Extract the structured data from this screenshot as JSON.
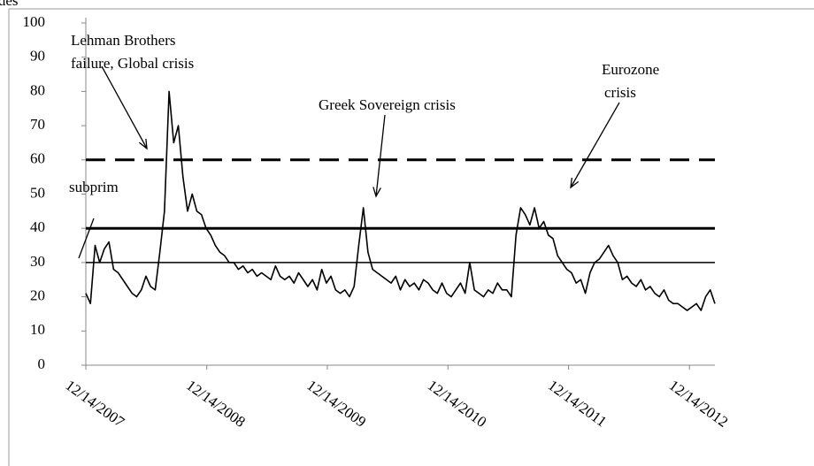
{
  "chart_data": {
    "type": "line",
    "title": "isodes",
    "color": "#000000",
    "x": [
      "2007-12-14",
      "2007-12-28",
      "2008-01-11",
      "2008-01-25",
      "2008-02-08",
      "2008-02-22",
      "2008-03-07",
      "2008-03-21",
      "2008-04-04",
      "2008-04-18",
      "2008-05-02",
      "2008-05-16",
      "2008-05-30",
      "2008-06-13",
      "2008-06-27",
      "2008-07-11",
      "2008-07-25",
      "2008-08-08",
      "2008-08-22",
      "2008-09-05",
      "2008-09-19",
      "2008-10-03",
      "2008-10-17",
      "2008-10-31",
      "2008-11-14",
      "2008-11-28",
      "2008-12-12",
      "2008-12-26",
      "2009-01-09",
      "2009-01-23",
      "2009-02-06",
      "2009-02-20",
      "2009-03-06",
      "2009-03-20",
      "2009-04-03",
      "2009-04-17",
      "2009-05-01",
      "2009-05-15",
      "2009-05-29",
      "2009-06-12",
      "2009-06-26",
      "2009-07-10",
      "2009-07-24",
      "2009-08-07",
      "2009-08-21",
      "2009-09-04",
      "2009-09-18",
      "2009-10-02",
      "2009-10-16",
      "2009-10-30",
      "2009-11-13",
      "2009-11-27",
      "2009-12-11",
      "2009-12-25",
      "2010-01-08",
      "2010-01-22",
      "2010-02-05",
      "2010-02-19",
      "2010-03-05",
      "2010-03-19",
      "2010-04-02",
      "2010-04-16",
      "2010-04-30",
      "2010-05-14",
      "2010-05-28",
      "2010-06-11",
      "2010-06-25",
      "2010-07-09",
      "2010-07-23",
      "2010-08-06",
      "2010-08-20",
      "2010-09-03",
      "2010-09-17",
      "2010-10-01",
      "2010-10-15",
      "2010-10-29",
      "2010-11-12",
      "2010-11-26",
      "2010-12-10",
      "2010-12-24",
      "2011-01-07",
      "2011-01-21",
      "2011-02-04",
      "2011-02-18",
      "2011-03-04",
      "2011-03-18",
      "2011-04-01",
      "2011-04-15",
      "2011-04-29",
      "2011-05-13",
      "2011-05-27",
      "2011-06-10",
      "2011-06-24",
      "2011-07-08",
      "2011-07-22",
      "2011-08-05",
      "2011-08-19",
      "2011-09-02",
      "2011-09-16",
      "2011-09-30",
      "2011-10-14",
      "2011-10-28",
      "2011-11-11",
      "2011-11-25",
      "2011-12-09",
      "2011-12-23",
      "2012-01-06",
      "2012-01-20",
      "2012-02-03",
      "2012-02-17",
      "2012-03-02",
      "2012-03-16",
      "2012-03-30",
      "2012-04-13",
      "2012-04-27",
      "2012-05-11",
      "2012-05-25",
      "2012-06-08",
      "2012-06-22",
      "2012-07-06",
      "2012-07-20",
      "2012-08-03",
      "2012-08-17",
      "2012-08-31",
      "2012-09-14",
      "2012-09-28",
      "2012-10-12",
      "2012-10-26",
      "2012-11-09",
      "2012-11-23",
      "2012-12-07",
      "2012-12-21",
      "2013-01-04",
      "2013-01-18",
      "2013-02-01",
      "2013-02-15",
      "2013-03-01"
    ],
    "values": [
      21,
      18,
      35,
      30,
      34,
      36,
      28,
      27,
      25,
      23,
      21,
      20,
      22,
      26,
      23,
      22,
      33,
      45,
      80,
      65,
      70,
      55,
      45,
      50,
      45,
      44,
      40,
      38,
      35,
      33,
      32,
      30,
      30,
      28,
      29,
      27,
      28,
      26,
      27,
      26,
      25,
      29,
      26,
      25,
      26,
      24,
      27,
      25,
      23,
      25,
      22,
      28,
      24,
      26,
      22,
      21,
      22,
      20,
      23,
      35,
      46,
      33,
      28,
      27,
      26,
      25,
      24,
      26,
      22,
      25,
      23,
      24,
      22,
      25,
      24,
      22,
      21,
      24,
      21,
      20,
      22,
      24,
      21,
      30,
      22,
      21,
      20,
      22,
      21,
      24,
      22,
      22,
      20,
      38,
      46,
      44,
      41,
      46,
      40,
      42,
      38,
      37,
      32,
      30,
      28,
      27,
      24,
      25,
      21,
      27,
      30,
      31,
      33,
      35,
      32,
      30,
      25,
      26,
      24,
      23,
      25,
      22,
      23,
      21,
      20,
      22,
      19,
      18,
      18,
      17,
      16,
      17,
      18,
      16,
      20,
      22,
      18
    ],
    "xlim": [
      "2007-12-14",
      "2013-03-01"
    ],
    "xticks": [
      {
        "value": "2007-12-14",
        "label": "12/14/2007"
      },
      {
        "value": "2008-12-14",
        "label": "12/14/2008"
      },
      {
        "value": "2009-12-14",
        "label": "12/14/2009"
      },
      {
        "value": "2010-12-14",
        "label": "12/14/2010"
      },
      {
        "value": "2011-12-14",
        "label": "12/14/2011"
      },
      {
        "value": "2012-12-14",
        "label": "12/14/2012"
      }
    ],
    "ylim": [
      0,
      100
    ],
    "yticks": [
      0,
      10,
      20,
      30,
      40,
      50,
      60,
      70,
      80,
      90,
      100
    ],
    "reference_lines": [
      {
        "value": 60,
        "style": "dashed"
      },
      {
        "value": 40,
        "style": "thick"
      },
      {
        "value": 30,
        "style": "thin"
      }
    ],
    "annotations": [
      {
        "lines": [
          "Lehman Brothers",
          "failure, Global  crisis"
        ]
      },
      {
        "lines": [
          "Greek Sovereign crisis"
        ]
      },
      {
        "lines": [
          "Eurozone",
          "crisis"
        ]
      },
      {
        "lines": [
          "subprim"
        ]
      }
    ]
  }
}
